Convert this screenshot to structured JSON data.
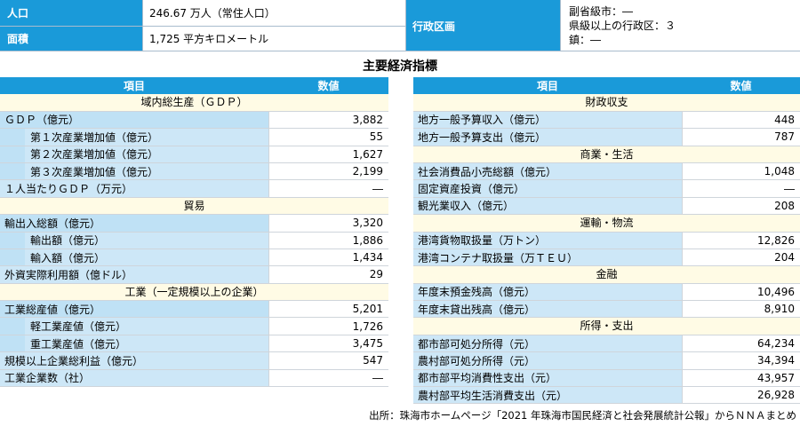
{
  "info": {
    "population_label": "人口",
    "population_value": "246.67 万人（常住人口）",
    "area_label": "面積",
    "area_value": "1,725 平方キロメートル",
    "admin_label": "行政区画",
    "admin_lines": [
      "副省級市：―",
      "県級以上の行政区：３",
      "鎮：―"
    ]
  },
  "title": "主要経済指標",
  "left_table": {
    "header_item": "項目",
    "header_value": "数値",
    "rows": [
      {
        "kind": "sec",
        "label": "域内総生産（ＧＤＰ）"
      },
      {
        "kind": "top",
        "label": "ＧＤＰ（億元）",
        "value": "3,882"
      },
      {
        "kind": "sub",
        "label": "第１次産業増加値（億元）",
        "value": "55"
      },
      {
        "kind": "sub",
        "label": "第２次産業増加値（億元）",
        "value": "1,627"
      },
      {
        "kind": "sub",
        "label": "第３次産業増加値（億元）",
        "value": "2,199"
      },
      {
        "kind": "item",
        "label": "１人当たりＧＤＰ（万元）",
        "value": "―"
      },
      {
        "kind": "sec",
        "label": "貿易"
      },
      {
        "kind": "top",
        "label": "輸出入総額（億元）",
        "value": "3,320"
      },
      {
        "kind": "sub",
        "label": "輸出額（億元）",
        "value": "1,886"
      },
      {
        "kind": "sub",
        "label": "輸入額（億元）",
        "value": "1,434"
      },
      {
        "kind": "item",
        "label": "外資実際利用額（億ドル）",
        "value": "29"
      },
      {
        "kind": "sec",
        "label": "工業（一定規模以上の企業）"
      },
      {
        "kind": "top",
        "label": "工業総産値（億元）",
        "value": "5,201"
      },
      {
        "kind": "sub",
        "label": "軽工業産値（億元）",
        "value": "1,726"
      },
      {
        "kind": "sub",
        "label": "重工業産値（億元）",
        "value": "3,475"
      },
      {
        "kind": "item",
        "label": "規模以上企業総利益（億元）",
        "value": "547"
      },
      {
        "kind": "item",
        "label": "工業企業数（社）",
        "value": "―"
      }
    ]
  },
  "right_table": {
    "header_item": "項目",
    "header_value": "数値",
    "rows": [
      {
        "kind": "sec",
        "label": "財政収支"
      },
      {
        "kind": "item",
        "label": "地方一般予算収入（億元）",
        "value": "448"
      },
      {
        "kind": "item",
        "label": "地方一般予算支出（億元）",
        "value": "787"
      },
      {
        "kind": "sec",
        "label": "商業・生活"
      },
      {
        "kind": "item",
        "label": "社会消費品小売総額（億元）",
        "value": "1,048"
      },
      {
        "kind": "item",
        "label": "固定資産投資（億元）",
        "value": "―"
      },
      {
        "kind": "item",
        "label": "観光業収入（億元）",
        "value": "208"
      },
      {
        "kind": "sec",
        "label": "運輸・物流"
      },
      {
        "kind": "item",
        "label": "港湾貨物取扱量（万トン）",
        "value": "12,826"
      },
      {
        "kind": "item",
        "label": "港湾コンテナ取扱量（万ＴＥＵ）",
        "value": "204"
      },
      {
        "kind": "sec",
        "label": "金融"
      },
      {
        "kind": "item",
        "label": "年度末預金残高（億元）",
        "value": "10,496"
      },
      {
        "kind": "item",
        "label": "年度末貸出残高（億元）",
        "value": "8,910"
      },
      {
        "kind": "sec",
        "label": "所得・支出"
      },
      {
        "kind": "item",
        "label": "都市部可処分所得（元）",
        "value": "64,234"
      },
      {
        "kind": "item",
        "label": "農村部可処分所得（元）",
        "value": "34,394"
      },
      {
        "kind": "item",
        "label": "都市部平均消費性支出（元）",
        "value": "43,957"
      },
      {
        "kind": "item",
        "label": "農村部平均生活消費支出（元）",
        "value": "26,928"
      }
    ]
  },
  "source": "出所：珠海市ホームページ「2021 年珠海市国民経済と社会発展統計公報」からＮＮＡまとめ"
}
